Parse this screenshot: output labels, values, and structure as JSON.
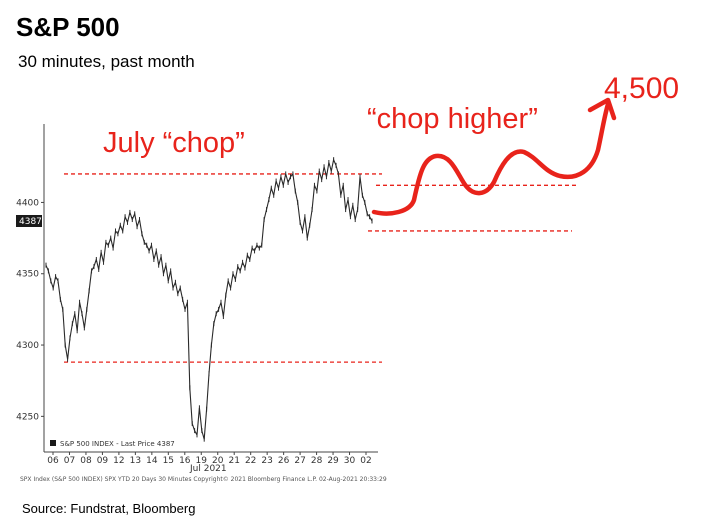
{
  "header": {
    "title": "S&P 500",
    "subtitle": "30 minutes, past month"
  },
  "source": "Source: Fundstrat, Bloomberg",
  "annotations": {
    "july_chop": "July “chop”",
    "chop_higher": "“chop higher”",
    "target": "4,500",
    "color": "#e8231b"
  },
  "chart_data": {
    "type": "line",
    "title": "S&P 500",
    "subtitle": "30 minutes, past month",
    "x_tick_labels": [
      "06",
      "07",
      "08",
      "09",
      "12",
      "13",
      "14",
      "15",
      "16",
      "19",
      "20",
      "21",
      "22",
      "23",
      "26",
      "27",
      "28",
      "29",
      "30",
      "02"
    ],
    "x_month_label": "Jul 2021",
    "y_ticks": [
      4250,
      4300,
      4350,
      4400
    ],
    "ylim": [
      4225,
      4455
    ],
    "last_price": 4387,
    "last_price_label": "4387",
    "legend_label": "S&P 500 INDEX - Last Price 4387",
    "footer": "SPX Index (S&P 500 INDEX) SPX YTD 20 Days 30 Minutes   Copyright© 2021 Bloomberg Finance L.P.   02-Aug-2021 20:33:29",
    "reference_lines": {
      "july_chop_upper": 4420,
      "july_chop_lower": 4288,
      "projection_upper": 4412,
      "projection_lower": 4380
    },
    "series": [
      {
        "values": [
          4356,
          4352,
          4345,
          4340,
          4348,
          4345,
          4332,
          4325,
          4300,
          4290,
          4305,
          4315,
          4322,
          4310,
          4330,
          4322,
          4312,
          4325,
          4338,
          4352,
          4355,
          4360,
          4353,
          4365,
          4358,
          4372,
          4370,
          4375,
          4368,
          4380,
          4378,
          4384,
          4380,
          4390,
          4386,
          4393,
          4388,
          4392,
          4383,
          4388,
          4378,
          4372,
          4370,
          4366,
          4370,
          4360,
          4366,
          4356,
          4362,
          4350,
          4356,
          4345,
          4352,
          4340,
          4344,
          4336,
          4340,
          4332,
          4325,
          4330,
          4270,
          4245,
          4240,
          4237,
          4256,
          4240,
          4234,
          4255,
          4280,
          4300,
          4315,
          4322,
          4325,
          4330,
          4320,
          4335,
          4345,
          4340,
          4350,
          4346,
          4355,
          4352,
          4358,
          4354,
          4363,
          4360,
          4368,
          4366,
          4370,
          4368,
          4370,
          4388,
          4395,
          4402,
          4410,
          4405,
          4415,
          4410,
          4418,
          4412,
          4420,
          4414,
          4418,
          4420,
          4408,
          4400,
          4386,
          4380,
          4390,
          4375,
          4384,
          4395,
          4412,
          4408,
          4422,
          4416,
          4425,
          4418,
          4428,
          4422,
          4430,
          4426,
          4420,
          4405,
          4412,
          4395,
          4402,
          4390,
          4398,
          4388,
          4395,
          4418,
          4405,
          4400,
          4392,
          4390,
          4387
        ]
      }
    ]
  }
}
